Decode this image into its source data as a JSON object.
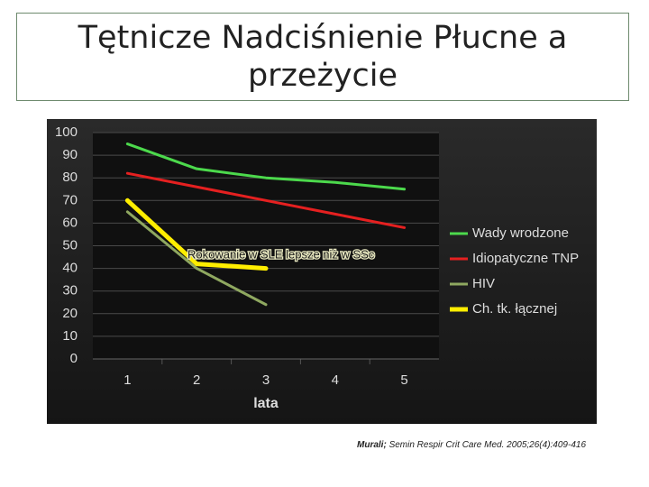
{
  "chart_data": {
    "type": "line",
    "title": "Tętnicze Nadciśnienie Płucne a przeżycie",
    "categories": [
      "1",
      "2",
      "3",
      "4",
      "5"
    ],
    "xlabel": "lata",
    "ylim": [
      0,
      100
    ],
    "yticks": [
      0,
      10,
      20,
      30,
      40,
      50,
      60,
      70,
      80,
      90,
      100
    ],
    "grid": true,
    "legend": "right",
    "series": [
      {
        "name": "Wady wrodzone",
        "color": "#4cd94c",
        "values": [
          95,
          84,
          80,
          78,
          75
        ]
      },
      {
        "name": "Idiopatyczne TNP",
        "color": "#e52020",
        "values": [
          82,
          76,
          70,
          64,
          58
        ]
      },
      {
        "name": "HIV",
        "color": "#8fa860",
        "values": [
          65,
          40,
          24,
          null,
          null
        ]
      },
      {
        "name": "Ch. tk. łącznej",
        "color": "#ffee00",
        "values": [
          70,
          42,
          40,
          null,
          null
        ]
      }
    ],
    "annotation": "Rokowanie w SLE lepsze niż w SSc",
    "citation": {
      "author": "Murali;",
      "text": "Semin Respir Crit Care Med. 2005;26(4):409-416"
    }
  }
}
